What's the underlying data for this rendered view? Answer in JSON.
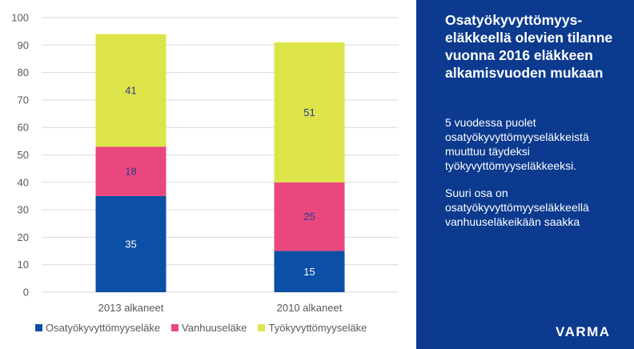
{
  "chart_data": {
    "type": "bar",
    "stacked": true,
    "categories": [
      "2013 alkaneet",
      "2010 alkaneet"
    ],
    "series": [
      {
        "name": "Osatyökyvyttömyyseläke",
        "values": [
          35,
          15
        ],
        "color": "#0b4fa6"
      },
      {
        "name": "Vanhuuseläke",
        "values": [
          18,
          25
        ],
        "color": "#e8487e"
      },
      {
        "name": "Työkyvyttömyyseläke",
        "values": [
          41,
          51
        ],
        "color": "#dde44a"
      }
    ],
    "ylim": [
      0,
      100
    ],
    "yticks": [
      0,
      10,
      20,
      30,
      40,
      50,
      60,
      70,
      80,
      90,
      100
    ],
    "grid": true,
    "legend": "bottom",
    "title": "",
    "xlabel": "",
    "ylabel": ""
  },
  "label_colors": [
    "#ffffff",
    "#2b3a8e",
    "#2b3a8e"
  ],
  "panel": {
    "title": "Osatyökyvyttömyys-eläkkeellä olevien tilanne vuonna 2016 eläkkeen alkamisvuoden mukaan",
    "paragraph1": "5 vuodessa puolet osatyökyvyttömyyseläkkeistä muuttuu täydeksi työkyvyttömyyseläkkeeksi.",
    "paragraph2": "Suuri osa on osatyökyvyttömyyseläkkeellä vanhuuseläkeikään saakka",
    "logo": "VARMA",
    "background": "#0b3a8e"
  }
}
